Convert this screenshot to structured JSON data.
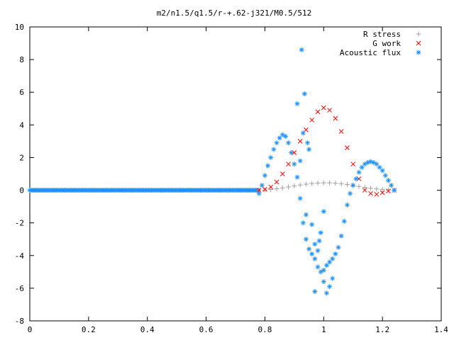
{
  "chart_data": {
    "type": "scatter",
    "title": "m2/n1.5/q1.5/r-+.62-j321/M0.5/512",
    "xlim": [
      0,
      1.4
    ],
    "ylim": [
      -8,
      10
    ],
    "x_ticks": [
      "0",
      "0.2",
      "0.4",
      "0.6",
      "0.8",
      "1",
      "1.2",
      "1.4"
    ],
    "y_ticks": [
      "-8",
      "-6",
      "-4",
      "-2",
      "0",
      "2",
      "4",
      "6",
      "8",
      "10"
    ],
    "x_tick_values": [
      0,
      0.2,
      0.4,
      0.6,
      0.8,
      1.0,
      1.2,
      1.4
    ],
    "y_tick_values": [
      -8,
      -6,
      -4,
      -2,
      0,
      2,
      4,
      6,
      8,
      10
    ],
    "legend_position": "top-right",
    "grid": false,
    "series": [
      {
        "name": "R stress",
        "marker": "plus",
        "color": "#a0a0a0",
        "x": [
          0.78,
          0.8,
          0.82,
          0.84,
          0.86,
          0.88,
          0.9,
          0.92,
          0.94,
          0.96,
          0.98,
          1.0,
          1.02,
          1.04,
          1.06,
          1.08,
          1.1,
          1.12,
          1.14,
          1.16,
          1.18,
          1.2,
          1.22,
          1.24
        ],
        "y": [
          0.0,
          0.02,
          0.05,
          0.09,
          0.14,
          0.2,
          0.26,
          0.32,
          0.37,
          0.41,
          0.44,
          0.45,
          0.45,
          0.43,
          0.4,
          0.35,
          0.29,
          0.23,
          0.17,
          0.12,
          0.08,
          0.05,
          0.02,
          0.0
        ]
      },
      {
        "name": "G work",
        "marker": "cross",
        "color": "#ff0000",
        "x": [
          0.78,
          0.8,
          0.82,
          0.84,
          0.86,
          0.88,
          0.9,
          0.92,
          0.94,
          0.96,
          0.98,
          1.0,
          1.02,
          1.04,
          1.06,
          1.08,
          1.1,
          1.12,
          1.14,
          1.16,
          1.18,
          1.2,
          1.22,
          1.24
        ],
        "y": [
          0.0,
          0.05,
          0.2,
          0.5,
          1.0,
          1.6,
          2.3,
          3.0,
          3.7,
          4.3,
          4.8,
          5.05,
          4.9,
          4.4,
          3.6,
          2.6,
          1.6,
          0.7,
          0.0,
          -0.2,
          -0.25,
          -0.15,
          -0.05,
          0.0
        ]
      },
      {
        "name": "Acoustic flux",
        "marker": "star",
        "color": "#1e90ff",
        "x": [
          0.78,
          0.79,
          0.8,
          0.81,
          0.82,
          0.83,
          0.84,
          0.85,
          0.86,
          0.87,
          0.88,
          0.89,
          0.9,
          0.91,
          0.92,
          0.93,
          0.94,
          0.95,
          0.96,
          0.97,
          0.98,
          0.99,
          1.0,
          1.01,
          1.02,
          1.03,
          1.04,
          1.05,
          1.06,
          1.07,
          1.08,
          1.09,
          1.1,
          1.11,
          1.12,
          1.13,
          1.14,
          1.15,
          1.16,
          1.17,
          1.18,
          1.19,
          1.2,
          1.21,
          1.22,
          1.23,
          1.24,
          0.925,
          0.935,
          0.91,
          0.93,
          0.945,
          0.95,
          0.92,
          0.94,
          0.96,
          0.97,
          0.98,
          0.99,
          1.0,
          1.01,
          1.02,
          1.03,
          0.97,
          0.985,
          1.0
        ],
        "y": [
          -0.2,
          0.3,
          0.9,
          1.5,
          2.0,
          2.5,
          2.9,
          3.2,
          3.4,
          3.3,
          2.9,
          2.3,
          1.6,
          0.8,
          -0.5,
          -2.0,
          -3.0,
          -3.6,
          -3.9,
          -4.2,
          -4.7,
          -5.0,
          -4.9,
          -4.6,
          -4.4,
          -4.2,
          -3.9,
          -3.5,
          -2.8,
          -1.9,
          -0.9,
          -0.2,
          0.3,
          0.7,
          1.1,
          1.4,
          1.6,
          1.7,
          1.75,
          1.7,
          1.6,
          1.4,
          1.2,
          0.9,
          0.6,
          0.3,
          0.0,
          8.6,
          5.9,
          5.3,
          3.5,
          2.9,
          2.5,
          1.8,
          -1.5,
          -2.1,
          -3.3,
          -3.7,
          -2.6,
          -1.3,
          -6.3,
          -5.9,
          -5.4,
          -6.2,
          -3.1,
          -5.6
        ]
      }
    ]
  }
}
